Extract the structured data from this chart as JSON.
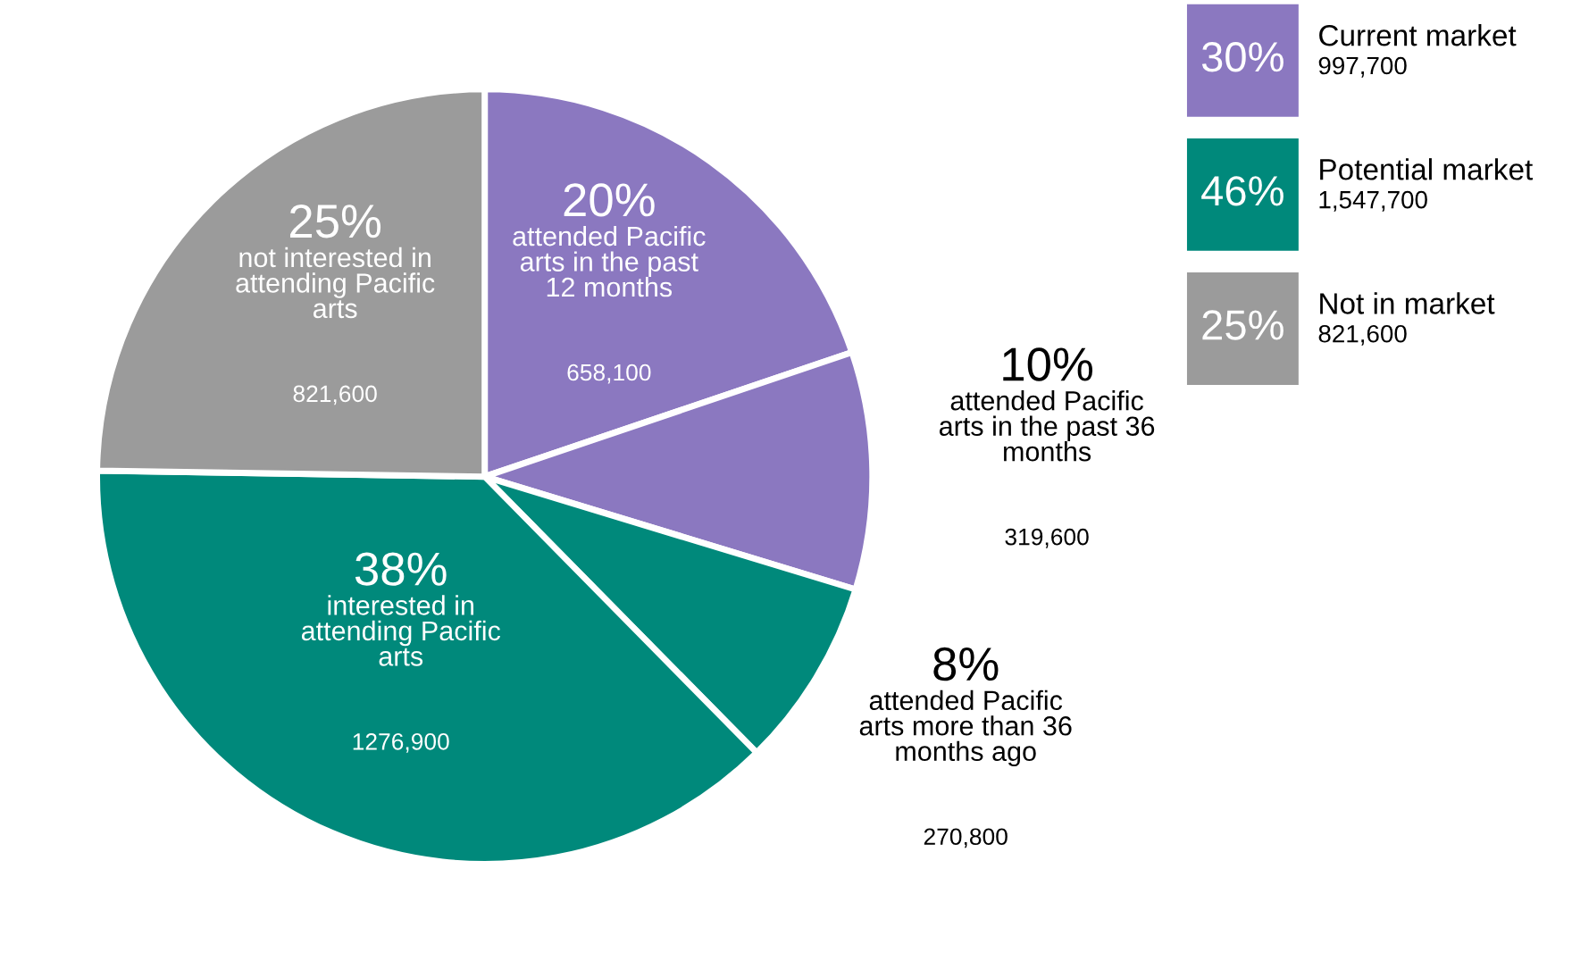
{
  "chart_data": [
    {
      "type": "pie",
      "categories": [
        "attended Pacific arts in the past 12 months",
        "attended Pacific arts in the past 36 months",
        "attended Pacific arts more than 36 months ago",
        "interested in attending Pacific arts",
        "not interested in attending Pacific arts"
      ],
      "values": [
        20,
        10,
        8,
        38,
        25
      ],
      "value_labels": [
        "20%",
        "10%",
        "8%",
        "38%",
        "25%"
      ],
      "colors": [
        "#8b78c0",
        "#8b78c0",
        "#00897b",
        "#00897b",
        "#9b9b9b"
      ],
      "annotations": [
        {
          "text": "658,100",
          "x": "attended Pacific arts in the past 12 months"
        },
        {
          "text": "319,600",
          "x": "attended Pacific arts in the past 36 months"
        },
        {
          "text": "270,800",
          "x": "attended Pacific arts more than 36 months ago"
        },
        {
          "text": "1276,900",
          "x": "interested in attending Pacific arts"
        },
        {
          "text": "821,600",
          "x": "not interested in attending Pacific arts"
        }
      ]
    },
    {
      "type": "other",
      "categories": [
        "Current market",
        "Potential market",
        "Not in market"
      ],
      "values": [
        30,
        46,
        25
      ],
      "value_labels": [
        "30%",
        "46%",
        "25%"
      ],
      "colors": [
        "#8b78c0",
        "#00897b",
        "#9b9b9b"
      ],
      "annotations": [
        {
          "text": "997,700",
          "x": "Current market"
        },
        {
          "text": "1,547,700",
          "x": "Potential market"
        },
        {
          "text": "821,600",
          "x": "Not in market"
        }
      ]
    }
  ]
}
